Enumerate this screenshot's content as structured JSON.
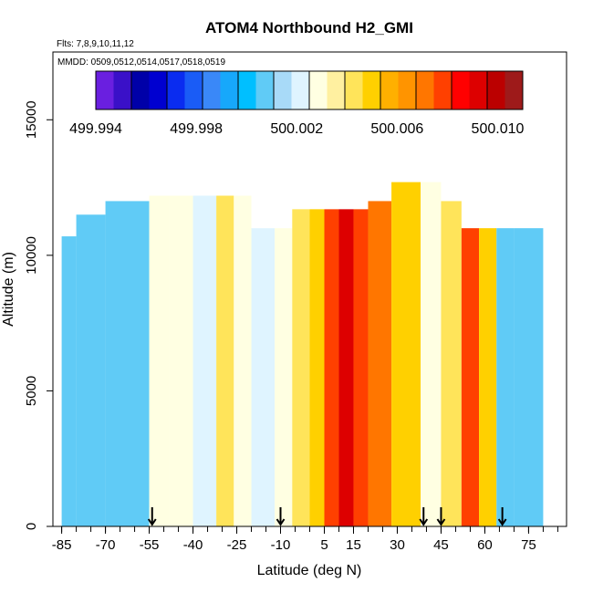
{
  "chart_data": {
    "type": "heatmap",
    "title": "ATOM4 Northbound H2_GMI",
    "flights_label": "Flts: 7,8,9,10,11,12",
    "mmdd_label": "MMDD: 0509,0512,0514,0517,0518,0519",
    "xlabel": "Latitude (deg N)",
    "ylabel": "Altitude (m)",
    "xlim": [
      -88,
      88
    ],
    "ylim": [
      0,
      17500
    ],
    "x_ticks": [
      -85,
      -70,
      -55,
      -40,
      -25,
      -10,
      5,
      15,
      30,
      45,
      60,
      75
    ],
    "x_tick_labels": [
      "-85",
      "-70",
      "-55",
      "-40",
      "-25",
      "-10",
      "5",
      "15",
      "30",
      "45",
      "60",
      "75"
    ],
    "y_ticks": [
      0,
      5000,
      10000,
      15000
    ],
    "y_tick_labels": [
      "0",
      "5000",
      "10000",
      "15000"
    ],
    "colorbar": {
      "ticks": [
        499.994,
        499.998,
        500.002,
        500.006,
        500.01
      ],
      "tick_labels": [
        "499.994",
        "499.998",
        "500.002",
        "500.006",
        "500.010"
      ],
      "range": [
        499.994,
        500.011
      ],
      "colors": [
        "#6a1fe0",
        "#3a10c8",
        "#0000a8",
        "#0000d0",
        "#0a2cf0",
        "#1a5cf6",
        "#3a88f8",
        "#17a8fb",
        "#00bfff",
        "#60cbf6",
        "#a8daf8",
        "#dff4ff",
        "#ffffe2",
        "#fff0a0",
        "#ffe45a",
        "#ffd000",
        "#ffb000",
        "#ff9400",
        "#ff7600",
        "#ff4000",
        "#ff0000",
        "#dd0000",
        "#bb0000",
        "#9e1a1a"
      ]
    },
    "flight_arrows_lat": [
      -54,
      -10,
      39,
      45,
      66
    ],
    "curtain": [
      {
        "lat": [
          -85,
          -80
        ],
        "alt": [
          0,
          10700
        ],
        "value": 500.001
      },
      {
        "lat": [
          -80,
          -70
        ],
        "alt": [
          0,
          11500
        ],
        "value": 500.001
      },
      {
        "lat": [
          -70,
          -55
        ],
        "alt": [
          0,
          12000
        ],
        "value": 500.001
      },
      {
        "lat": [
          -55,
          -48
        ],
        "alt": [
          0,
          12200
        ],
        "value": 500.003
      },
      {
        "lat": [
          -48,
          -40
        ],
        "alt": [
          0,
          12200
        ],
        "value": 500.003
      },
      {
        "lat": [
          -40,
          -32
        ],
        "alt": [
          0,
          12200
        ],
        "value": 500.002
      },
      {
        "lat": [
          -32,
          -26
        ],
        "alt": [
          0,
          12200
        ],
        "value": 500.004
      },
      {
        "lat": [
          -26,
          -20
        ],
        "alt": [
          0,
          12200
        ],
        "value": 500.003
      },
      {
        "lat": [
          -20,
          -12
        ],
        "alt": [
          0,
          11000
        ],
        "value": 500.002
      },
      {
        "lat": [
          -12,
          -6
        ],
        "alt": [
          0,
          11000
        ],
        "value": 500.003
      },
      {
        "lat": [
          -6,
          0
        ],
        "alt": [
          0,
          11700
        ],
        "value": 500.004
      },
      {
        "lat": [
          0,
          5
        ],
        "alt": [
          0,
          11700
        ],
        "value": 500.005
      },
      {
        "lat": [
          5,
          10
        ],
        "alt": [
          0,
          11700
        ],
        "value": 500.008
      },
      {
        "lat": [
          10,
          15
        ],
        "alt": [
          0,
          11700
        ],
        "value": 500.009
      },
      {
        "lat": [
          15,
          20
        ],
        "alt": [
          0,
          11700
        ],
        "value": 500.008
      },
      {
        "lat": [
          20,
          28
        ],
        "alt": [
          0,
          12000
        ],
        "value": 500.007
      },
      {
        "lat": [
          28,
          38
        ],
        "alt": [
          0,
          12700
        ],
        "value": 500.005
      },
      {
        "lat": [
          38,
          45
        ],
        "alt": [
          0,
          12700
        ],
        "value": 500.003
      },
      {
        "lat": [
          45,
          52
        ],
        "alt": [
          0,
          12000
        ],
        "value": 500.004
      },
      {
        "lat": [
          52,
          58
        ],
        "alt": [
          0,
          11000
        ],
        "value": 500.008
      },
      {
        "lat": [
          58,
          64
        ],
        "alt": [
          0,
          11000
        ],
        "value": 500.005
      },
      {
        "lat": [
          64,
          70
        ],
        "alt": [
          0,
          11000
        ],
        "value": 500.001
      },
      {
        "lat": [
          70,
          80
        ],
        "alt": [
          0,
          11000
        ],
        "value": 500.001
      }
    ]
  }
}
